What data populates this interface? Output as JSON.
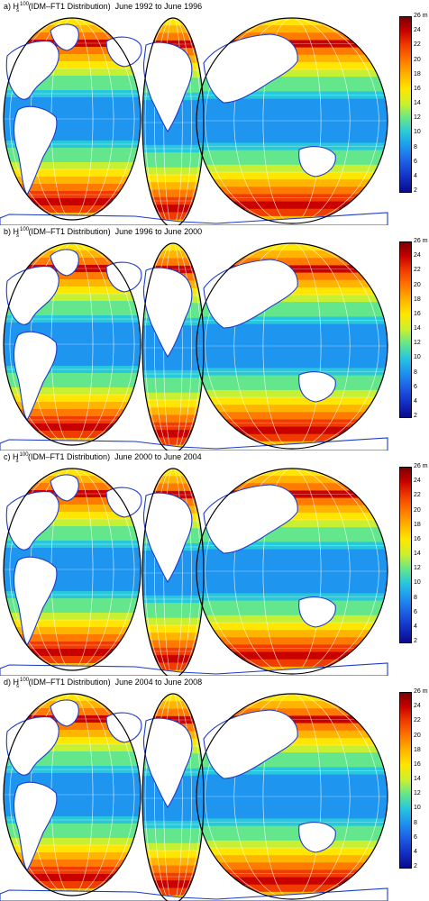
{
  "panels": [
    {
      "letter": "a)",
      "var": "H",
      "sup": "100",
      "sub": "s",
      "dist": "(IDM–FT1 Distribution)",
      "period": "June 1992 to June 1996"
    },
    {
      "letter": "b)",
      "var": "H",
      "sup": "100",
      "sub": "s",
      "dist": "(IDM–FT1 Distribution)",
      "period": "June 1996 to June 2000"
    },
    {
      "letter": "c)",
      "var": "H",
      "sup": "100",
      "sub": "s",
      "dist": "(IDM–FT1 Distribution)",
      "period": "June 2000 to June 2004"
    },
    {
      "letter": "d)",
      "var": "H",
      "sup": "100",
      "sub": "s",
      "dist": "(IDM–FT1 Distribution)",
      "period": "June 2004 to June 2008"
    }
  ],
  "colorbar": {
    "ticks": [
      "26 m",
      "24",
      "22",
      "20",
      "18",
      "16",
      "14",
      "12",
      "10",
      "8",
      "6",
      "4",
      "2"
    ],
    "range": [
      2,
      26
    ],
    "unit": "m",
    "colors": [
      "#0a0a8c",
      "#1432c8",
      "#1e64e6",
      "#1e96f0",
      "#28c8dc",
      "#64e68c",
      "#c8f032",
      "#ffe600",
      "#ffb400",
      "#ff7a00",
      "#f03c00",
      "#c80000",
      "#7a0000"
    ]
  },
  "map": {
    "projection": "interrupted Goode homolosine",
    "land_color": "#ffffff",
    "coast_color": "#1e3cc8"
  }
}
